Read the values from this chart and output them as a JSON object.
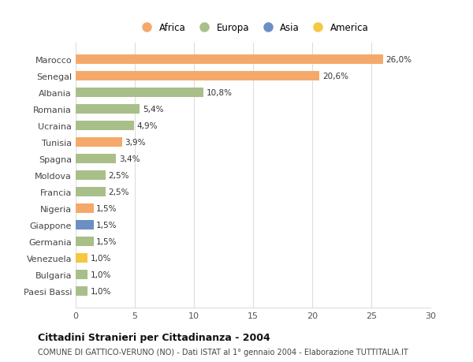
{
  "countries": [
    "Marocco",
    "Senegal",
    "Albania",
    "Romania",
    "Ucraina",
    "Tunisia",
    "Spagna",
    "Moldova",
    "Francia",
    "Nigeria",
    "Giappone",
    "Germania",
    "Venezuela",
    "Bulgaria",
    "Paesi Bassi"
  ],
  "values": [
    26.0,
    20.6,
    10.8,
    5.4,
    4.9,
    3.9,
    3.4,
    2.5,
    2.5,
    1.5,
    1.5,
    1.5,
    1.0,
    1.0,
    1.0
  ],
  "labels": [
    "26,0%",
    "20,6%",
    "10,8%",
    "5,4%",
    "4,9%",
    "3,9%",
    "3,4%",
    "2,5%",
    "2,5%",
    "1,5%",
    "1,5%",
    "1,5%",
    "1,0%",
    "1,0%",
    "1,0%"
  ],
  "continent": [
    "Africa",
    "Africa",
    "Europa",
    "Europa",
    "Europa",
    "Africa",
    "Europa",
    "Europa",
    "Europa",
    "Africa",
    "Asia",
    "Europa",
    "America",
    "Europa",
    "Europa"
  ],
  "colors": {
    "Africa": "#F4A96B",
    "Europa": "#A8BF8A",
    "Asia": "#6B8FC2",
    "America": "#F5C842"
  },
  "legend_order": [
    "Africa",
    "Europa",
    "Asia",
    "America"
  ],
  "title": "Cittadini Stranieri per Cittadinanza - 2004",
  "subtitle": "COMUNE DI GATTICO-VERUNO (NO) - Dati ISTAT al 1° gennaio 2004 - Elaborazione TUTTITALIA.IT",
  "xlim": [
    0,
    30
  ],
  "xticks": [
    0,
    5,
    10,
    15,
    20,
    25,
    30
  ],
  "background_color": "#ffffff",
  "grid_color": "#dddddd"
}
